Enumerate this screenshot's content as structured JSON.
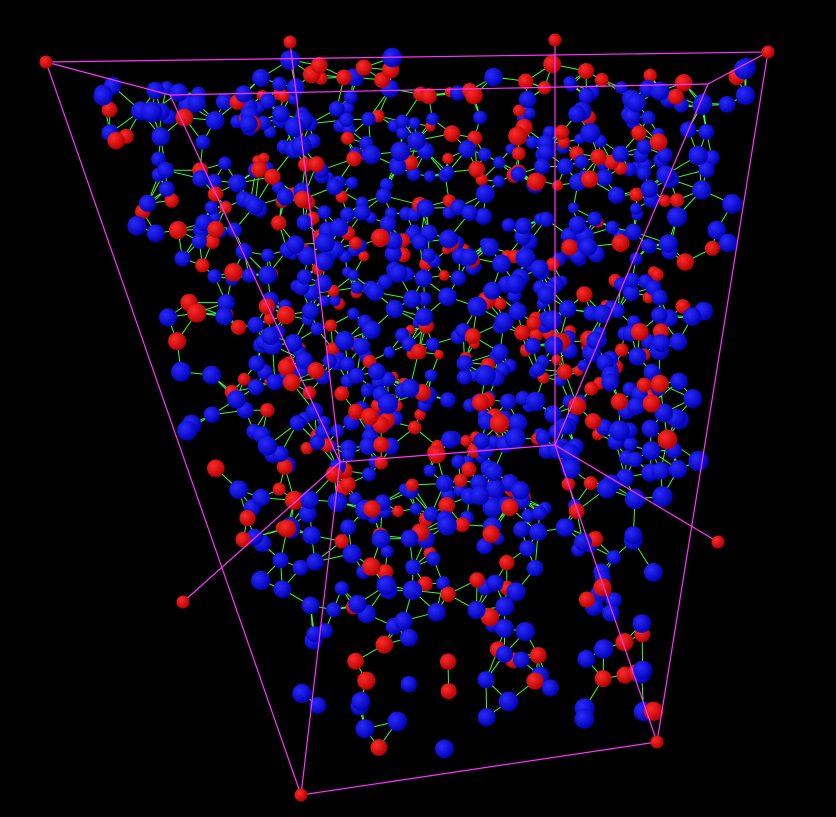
{
  "scene": {
    "description_visible_text": "",
    "background_color": "#000000",
    "box_edge_color": "#ff33ff",
    "bond_color": "#33ff33",
    "atom_types": [
      {
        "name": "blue-atom",
        "color": "#0000cc",
        "highlight": "#2a2aff"
      },
      {
        "name": "red-atom",
        "color": "#cc0000",
        "highlight": "#ff2a2a"
      }
    ]
  }
}
